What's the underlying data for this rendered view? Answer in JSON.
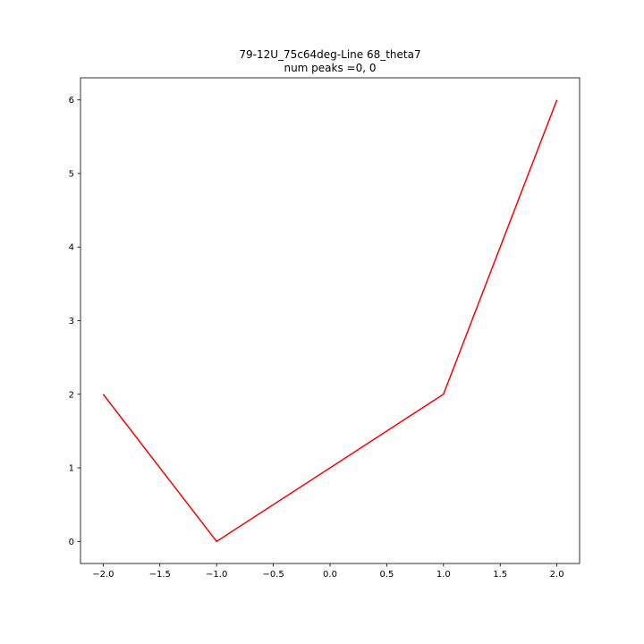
{
  "chart_data": {
    "type": "line",
    "title": "79-12U_75c64deg-Line 68_theta7",
    "subtitle": "num peaks =0, 0",
    "xlabel": "",
    "ylabel": "",
    "xlim": [
      -2.2,
      2.2
    ],
    "ylim": [
      -0.3,
      6.3
    ],
    "xticks": [
      -2.0,
      -1.5,
      -1.0,
      -0.5,
      0.0,
      0.5,
      1.0,
      1.5,
      2.0
    ],
    "xtick_labels": [
      "−2.0",
      "−1.5",
      "−1.0",
      "−0.5",
      "0.0",
      "0.5",
      "1.0",
      "1.5",
      "2.0"
    ],
    "yticks": [
      0,
      1,
      2,
      3,
      4,
      5,
      6
    ],
    "ytick_labels": [
      "0",
      "1",
      "2",
      "3",
      "4",
      "5",
      "6"
    ],
    "grid": false,
    "series": [
      {
        "color": "#ff0000",
        "x": [
          -2.0,
          -1.0,
          1.0,
          2.0
        ],
        "y": [
          2,
          0,
          2,
          6
        ]
      }
    ]
  }
}
